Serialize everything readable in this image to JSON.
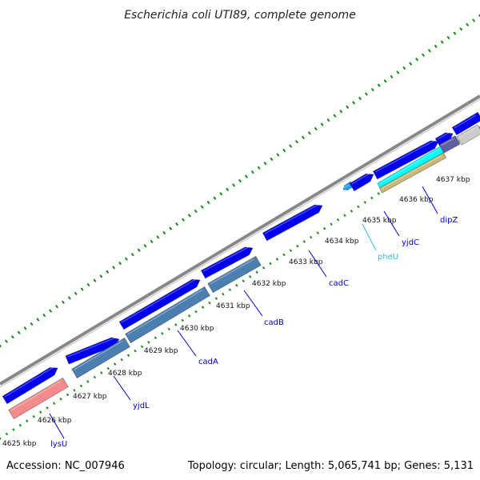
{
  "title": "Escherichia coli UTI89, complete genome",
  "footer": {
    "accession": "Accession: NC_007946",
    "summary": "Topology: circular; Length: 5,065,741 bp; Genes: 5,131"
  },
  "ruler_labels": [
    "4625 kbp",
    "4626 kbp",
    "4627 kbp",
    "4628 kbp",
    "4629 kbp",
    "4630 kbp",
    "4631 kbp",
    "4632 kbp",
    "4633 kbp",
    "4634 kbp",
    "4635 kbp",
    "4636 kbp",
    "4637 kbp"
  ],
  "gene_labels": [
    {
      "name": "lysU",
      "color": "#0000cc"
    },
    {
      "name": "yjdL",
      "color": "#0000cc"
    },
    {
      "name": "cadA",
      "color": "#0000cc"
    },
    {
      "name": "cadB",
      "color": "#0000cc"
    },
    {
      "name": "cadC",
      "color": "#0000cc"
    },
    {
      "name": "pheU",
      "color": "#33bbdd"
    },
    {
      "name": "yjdC",
      "color": "#0000cc"
    },
    {
      "name": "dipZ",
      "color": "#0000cc"
    }
  ],
  "colors": {
    "cds": "#0000ee",
    "rna": "#f28c8c",
    "cog_a": "#4a7fb0",
    "cog_b": "#00ffff",
    "cog_c": "#c8b878",
    "cog_d": "#6060a0",
    "tick": "#1a8a1a",
    "backbone": "#888888"
  }
}
